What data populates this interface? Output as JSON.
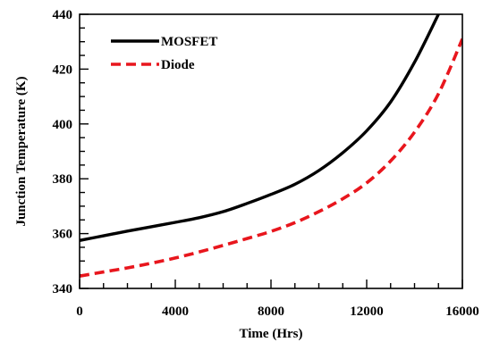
{
  "chart_data": {
    "type": "line",
    "xlabel": "Time (Hrs)",
    "ylabel": "Junction Temperature (K)",
    "xlim": [
      0,
      16000
    ],
    "ylim": [
      340,
      440
    ],
    "x_major_ticks": [
      0,
      4000,
      8000,
      12000,
      16000
    ],
    "x_minor_step": 1000,
    "y_major_ticks": [
      340,
      360,
      380,
      400,
      420,
      440
    ],
    "y_minor_step": 5,
    "grid": false,
    "legend_position": "top-left",
    "series": [
      {
        "name": "MOSFET",
        "color": "#000000",
        "style": "solid",
        "x": [
          0,
          1000,
          2000,
          3000,
          4000,
          5000,
          6000,
          7000,
          8000,
          9000,
          10000,
          11000,
          12000,
          13000,
          14000,
          15000
        ],
        "y": [
          357.5,
          359.2,
          360.9,
          362.5,
          364.1,
          365.8,
          368.0,
          371.0,
          374.3,
          378.0,
          383.0,
          389.5,
          397.5,
          408.0,
          422.5,
          440.0
        ]
      },
      {
        "name": "Diode",
        "color": "#e8161d",
        "style": "dashed",
        "x": [
          0,
          1000,
          2000,
          3000,
          4000,
          5000,
          6000,
          7000,
          8000,
          9000,
          10000,
          11000,
          12000,
          13000,
          14000,
          15000,
          16000
        ],
        "y": [
          344.5,
          346.0,
          347.5,
          349.2,
          351.1,
          353.3,
          355.7,
          358.2,
          360.8,
          364.0,
          368.0,
          372.7,
          378.5,
          386.5,
          397.0,
          411.0,
          431.0
        ]
      }
    ]
  }
}
